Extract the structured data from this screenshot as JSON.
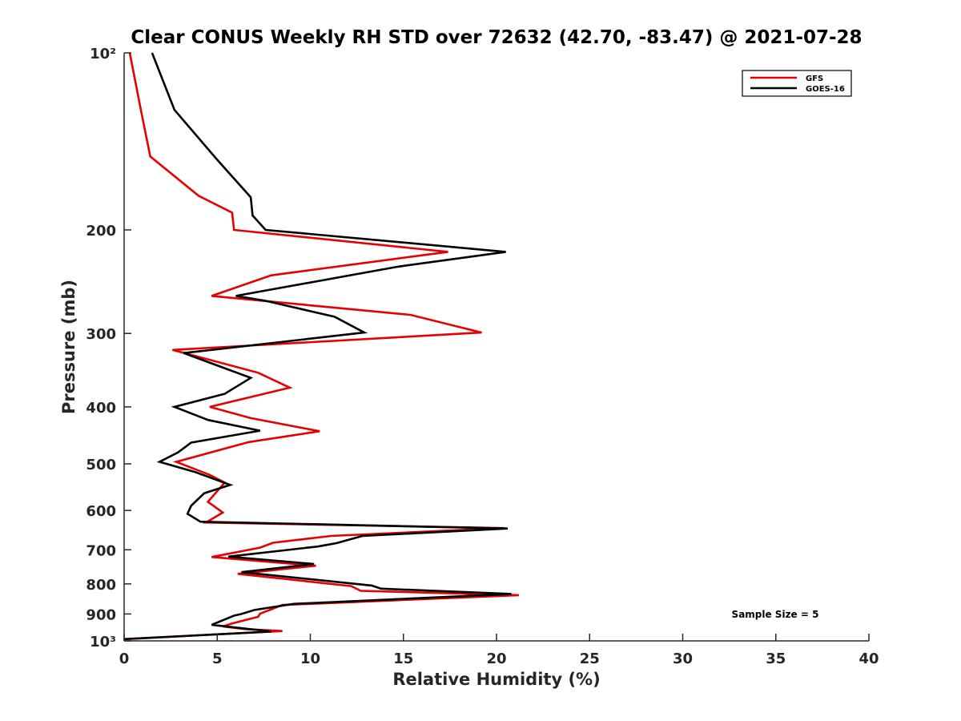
{
  "chart_data": {
    "type": "line",
    "title": "Clear CONUS Weekly RH STD over 72632 (42.70, -83.47) @ 2021-07-28",
    "xlabel": "Relative Humidity (%)",
    "ylabel": "Pressure (mb)",
    "xlim": [
      0,
      40
    ],
    "ylim": [
      100,
      1000
    ],
    "y_scale": "log",
    "y_reversed": true,
    "xticks": [
      0,
      5,
      10,
      15,
      20,
      25,
      30,
      35,
      40
    ],
    "xtick_labels": [
      "0",
      "5",
      "10",
      "15",
      "20",
      "25",
      "30",
      "35",
      "40"
    ],
    "yticks": [
      100,
      200,
      300,
      400,
      500,
      600,
      700,
      800,
      900,
      1000
    ],
    "ytick_labels": [
      "10²",
      "200",
      "300",
      "400",
      "500",
      "600",
      "700",
      "800",
      "900",
      "10³"
    ],
    "grid": false,
    "legend_position": "top-right",
    "annotation": "Sample Size = 5",
    "series": [
      {
        "name": "GFS",
        "color": "#e60000",
        "points": [
          [
            0.3,
            100
          ],
          [
            0.9,
            125
          ],
          [
            1.4,
            150
          ],
          [
            4.0,
            175
          ],
          [
            5.8,
            187
          ],
          [
            5.9,
            200
          ],
          [
            17.4,
            218
          ],
          [
            7.9,
            239
          ],
          [
            4.7,
            259
          ],
          [
            15.4,
            279
          ],
          [
            19.2,
            299
          ],
          [
            2.6,
            320
          ],
          [
            7.2,
            350
          ],
          [
            8.9,
            371
          ],
          [
            4.6,
            400
          ],
          [
            6.8,
            418
          ],
          [
            10.5,
            440
          ],
          [
            6.7,
            459
          ],
          [
            2.8,
            496
          ],
          [
            4.6,
            522
          ],
          [
            5.4,
            538
          ],
          [
            4.5,
            580
          ],
          [
            5.3,
            605
          ],
          [
            4.4,
            629
          ],
          [
            20.4,
            643
          ],
          [
            11.1,
            663
          ],
          [
            8.0,
            681
          ],
          [
            7.3,
            694
          ],
          [
            4.7,
            720
          ],
          [
            10.3,
            745
          ],
          [
            6.1,
            769
          ],
          [
            12.2,
            807
          ],
          [
            12.7,
            822
          ],
          [
            21.2,
            836
          ],
          [
            8.5,
            869
          ],
          [
            7.3,
            899
          ],
          [
            7.2,
            910
          ],
          [
            5.8,
            934
          ],
          [
            5.3,
            945
          ],
          [
            6.5,
            955
          ],
          [
            8.5,
            962
          ],
          [
            0.0,
            993
          ]
        ]
      },
      {
        "name": "GOES-16",
        "color": "#000000",
        "points": [
          [
            1.5,
            100
          ],
          [
            2.7,
            125
          ],
          [
            5.0,
            152
          ],
          [
            6.8,
            176
          ],
          [
            6.9,
            189
          ],
          [
            7.6,
            200
          ],
          [
            20.5,
            218
          ],
          [
            14.7,
            231
          ],
          [
            6.0,
            259
          ],
          [
            7.6,
            264
          ],
          [
            11.3,
            281
          ],
          [
            12.9,
            299
          ],
          [
            3.2,
            324
          ],
          [
            6.8,
            357
          ],
          [
            5.4,
            380
          ],
          [
            2.7,
            400
          ],
          [
            4.5,
            421
          ],
          [
            7.3,
            439
          ],
          [
            3.6,
            460
          ],
          [
            2.9,
            478
          ],
          [
            1.9,
            496
          ],
          [
            3.8,
            516
          ],
          [
            5.7,
            543
          ],
          [
            4.3,
            561
          ],
          [
            3.6,
            589
          ],
          [
            3.4,
            608
          ],
          [
            4.1,
            627
          ],
          [
            20.6,
            644
          ],
          [
            12.8,
            663
          ],
          [
            11.4,
            682
          ],
          [
            10.4,
            691
          ],
          [
            5.6,
            719
          ],
          [
            10.2,
            740
          ],
          [
            6.3,
            764
          ],
          [
            13.3,
            805
          ],
          [
            13.8,
            815
          ],
          [
            20.8,
            832
          ],
          [
            9.1,
            865
          ],
          [
            7.0,
            886
          ],
          [
            6.3,
            900
          ],
          [
            5.9,
            906
          ],
          [
            4.7,
            939
          ],
          [
            7.9,
            964
          ],
          [
            0.0,
            993
          ]
        ]
      }
    ]
  }
}
